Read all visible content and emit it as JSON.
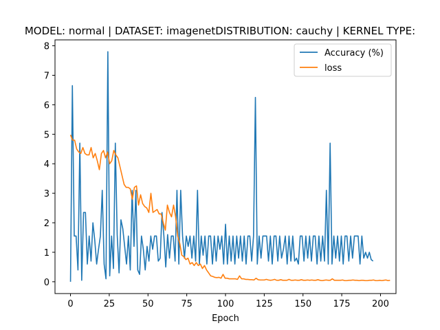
{
  "chart_data": {
    "type": "line",
    "title": "MODEL: normal | DATASET: imagenetDISTRIBUTION: cauchy | KERNEL TYPE:",
    "xlabel": "Epoch",
    "ylabel": "",
    "xlim": [
      -10,
      210
    ],
    "ylim": [
      -0.4,
      8.2
    ],
    "xticks": [
      0,
      25,
      50,
      75,
      100,
      125,
      150,
      175,
      200
    ],
    "yticks": [
      0,
      1,
      2,
      3,
      4,
      5,
      6,
      7,
      8
    ],
    "grid": false,
    "legend_position": "top-right",
    "series": [
      {
        "name": "Accuracy (%)",
        "color": "#1f77b4",
        "values": [
          0.0,
          6.65,
          1.55,
          1.55,
          0.4,
          4.7,
          0.05,
          2.35,
          2.35,
          0.6,
          1.55,
          0.7,
          2.0,
          1.4,
          0.6,
          1.1,
          1.55,
          3.1,
          0.6,
          0.1,
          7.8,
          0.2,
          1.55,
          0.45,
          4.7,
          1.6,
          0.3,
          2.1,
          1.8,
          1.2,
          0.6,
          1.55,
          0.4,
          3.1,
          1.2,
          3.1,
          0.4,
          0.25,
          1.55,
          1.1,
          0.4,
          1.2,
          0.7,
          1.55,
          1.1,
          1.55,
          1.55,
          0.7,
          0.8,
          2.35,
          1.55,
          0.5,
          1.6,
          0.8,
          1.55,
          1.55,
          0.7,
          3.1,
          0.6,
          3.1,
          1.55,
          0.8,
          1.55,
          1.2,
          1.55,
          0.8,
          1.55,
          0.7,
          3.1,
          0.6,
          1.55,
          0.9,
          1.55,
          0.6,
          1.55,
          1.55,
          0.6,
          1.55,
          0.7,
          1.55,
          1.1,
          1.55,
          0.6,
          1.95,
          0.6,
          1.55,
          0.7,
          1.55,
          0.6,
          1.55,
          0.8,
          1.55,
          0.7,
          1.55,
          0.6,
          1.55,
          1.55,
          0.7,
          1.55,
          6.25,
          0.6,
          1.55,
          0.8,
          1.55,
          1.55,
          1.55,
          0.7,
          1.55,
          0.6,
          1.55,
          1.55,
          0.7,
          1.55,
          0.8,
          1.1,
          1.55,
          0.6,
          1.55,
          0.7,
          1.55,
          0.7,
          0.8,
          0.6,
          1.55,
          1.55,
          0.7,
          1.55,
          0.8,
          1.55,
          0.7,
          1.55,
          1.55,
          0.6,
          1.55,
          0.7,
          1.55,
          0.7,
          3.1,
          0.6,
          4.7,
          0.6,
          1.55,
          0.8,
          1.55,
          0.7,
          1.55,
          0.6,
          1.55,
          1.55,
          0.7,
          1.55,
          0.8,
          1.55,
          1.55,
          1.55,
          0.6,
          1.55,
          0.8,
          1.0,
          0.8,
          1.0,
          0.75,
          0.7
        ],
        "x_step": 1.205
      },
      {
        "name": "loss",
        "color": "#ff7f0e",
        "values": [
          4.98,
          4.8,
          4.8,
          4.5,
          4.4,
          4.35,
          4.55,
          4.35,
          4.3,
          4.3,
          4.55,
          4.2,
          4.35,
          4.1,
          3.8,
          4.35,
          4.45,
          4.2,
          4.4,
          4.0,
          4.1,
          4.45,
          4.3,
          4.2,
          3.9,
          3.6,
          3.3,
          3.2,
          3.2,
          3.15,
          2.8,
          3.2,
          3.25,
          2.6,
          2.95,
          2.65,
          2.55,
          2.5,
          2.35,
          3.0,
          2.35,
          2.4,
          2.45,
          2.3,
          2.3,
          2.0,
          1.75,
          2.6,
          2.35,
          2.2,
          2.6,
          2.2,
          1.55,
          1.3,
          0.9,
          0.85,
          0.75,
          0.8,
          0.6,
          0.65,
          0.55,
          0.65,
          0.55,
          0.6,
          0.45,
          0.55,
          0.4,
          0.3,
          0.2,
          0.18,
          0.15,
          0.14,
          0.15,
          0.12,
          0.25,
          0.12,
          0.12,
          0.1,
          0.1,
          0.1,
          0.1,
          0.08,
          0.2,
          0.1,
          0.1,
          0.08,
          0.08,
          0.07,
          0.07,
          0.06,
          0.12,
          0.07,
          0.06,
          0.06,
          0.06,
          0.08,
          0.06,
          0.05,
          0.06,
          0.08,
          0.05,
          0.05,
          0.07,
          0.05,
          0.05,
          0.05,
          0.08,
          0.05,
          0.05,
          0.06,
          0.05,
          0.05,
          0.07,
          0.05,
          0.05,
          0.06,
          0.05,
          0.06,
          0.05,
          0.05,
          0.07,
          0.05,
          0.04,
          0.05,
          0.06,
          0.05,
          0.05,
          0.1,
          0.05,
          0.05,
          0.05,
          0.05,
          0.06,
          0.04,
          0.04,
          0.05,
          0.05,
          0.06,
          0.05,
          0.05,
          0.04,
          0.05,
          0.05,
          0.04,
          0.04,
          0.05,
          0.05,
          0.06,
          0.04,
          0.04,
          0.05,
          0.04,
          0.05,
          0.06,
          0.04,
          0.05
        ],
        "x_step": 1.33
      }
    ]
  }
}
